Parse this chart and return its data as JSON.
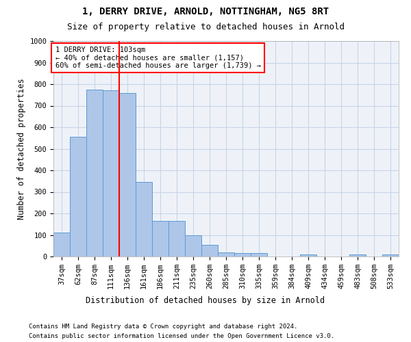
{
  "title": "1, DERRY DRIVE, ARNOLD, NOTTINGHAM, NG5 8RT",
  "subtitle": "Size of property relative to detached houses in Arnold",
  "xlabel": "Distribution of detached houses by size in Arnold",
  "ylabel": "Number of detached properties",
  "categories": [
    "37sqm",
    "62sqm",
    "87sqm",
    "111sqm",
    "136sqm",
    "161sqm",
    "186sqm",
    "211sqm",
    "235sqm",
    "260sqm",
    "285sqm",
    "310sqm",
    "335sqm",
    "359sqm",
    "384sqm",
    "409sqm",
    "434sqm",
    "459sqm",
    "483sqm",
    "508sqm",
    "533sqm"
  ],
  "values": [
    110,
    555,
    775,
    770,
    760,
    345,
    165,
    165,
    98,
    55,
    20,
    15,
    15,
    0,
    0,
    10,
    0,
    0,
    8,
    0,
    8
  ],
  "bar_color": "#aec6e8",
  "bar_edge_color": "#5b9bd5",
  "grid_color": "#c8d4e8",
  "background_color": "#eef2f8",
  "vline_color": "red",
  "vline_pos": 3.5,
  "annotation_text": "1 DERRY DRIVE: 103sqm\n← 40% of detached houses are smaller (1,157)\n60% of semi-detached houses are larger (1,739) →",
  "annotation_box_color": "white",
  "annotation_box_edge": "red",
  "ylim": [
    0,
    1000
  ],
  "yticks": [
    0,
    100,
    200,
    300,
    400,
    500,
    600,
    700,
    800,
    900,
    1000
  ],
  "footer1": "Contains HM Land Registry data © Crown copyright and database right 2024.",
  "footer2": "Contains public sector information licensed under the Open Government Licence v3.0.",
  "title_fontsize": 10,
  "subtitle_fontsize": 9,
  "tick_fontsize": 7.5,
  "ylabel_fontsize": 8.5,
  "xlabel_fontsize": 8.5,
  "footer_fontsize": 6.5
}
